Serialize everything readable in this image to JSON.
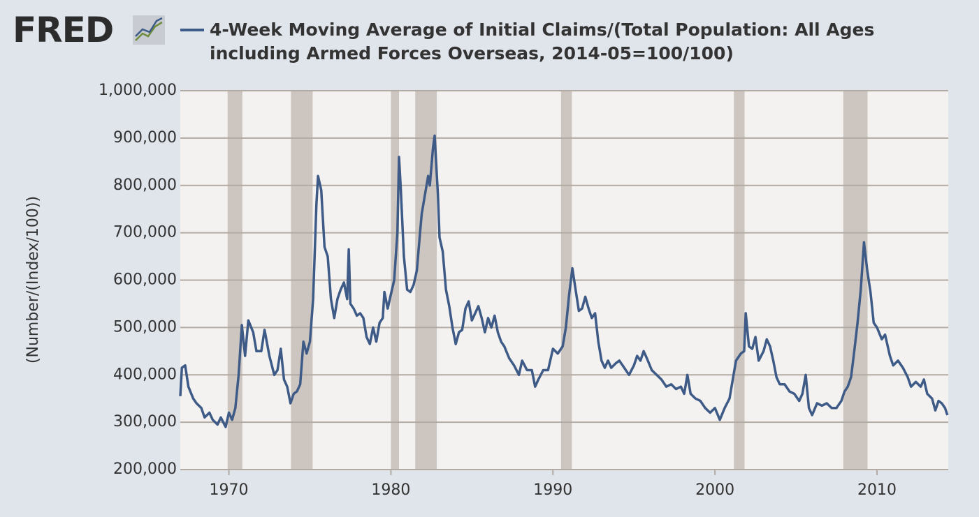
{
  "chart_data": {
    "type": "line",
    "logo": "FRED",
    "title": "4-Week Moving Average of Initial Claims/(Total Population: All Ages including Armed Forces Overseas, 2014-05=100/100)",
    "y_label": "(Number/(Index/100))",
    "xlim": [
      1967,
      2014.4
    ],
    "xticks": [
      1970,
      1980,
      1990,
      2000,
      2010
    ],
    "ylim": [
      200000,
      1000000
    ],
    "yticks": [
      {
        "value": 200000,
        "label": "200,000"
      },
      {
        "value": 300000,
        "label": "300,000"
      },
      {
        "value": 400000,
        "label": "400,000"
      },
      {
        "value": 500000,
        "label": "500,000"
      },
      {
        "value": 600000,
        "label": "600,000"
      },
      {
        "value": 700000,
        "label": "700,000"
      },
      {
        "value": 800000,
        "label": "800,000"
      },
      {
        "value": 900000,
        "label": "900,000"
      },
      {
        "value": 1000000,
        "label": "1,000,000"
      }
    ],
    "grid": true,
    "recession_color": "#cdc6c0",
    "recessions": [
      [
        1969.92,
        1970.83
      ],
      [
        1973.83,
        1975.17
      ],
      [
        1980.0,
        1980.5
      ],
      [
        1981.5,
        1982.83
      ],
      [
        1990.5,
        1991.17
      ],
      [
        2001.17,
        2001.83
      ],
      [
        2007.92,
        2009.42
      ]
    ],
    "series": [
      {
        "name": "4-Week Moving Average of Initial Claims/(Total Population: All Ages including Armed Forces Overseas, 2014-05=100/100)",
        "color": "#3e5a86",
        "x": [
          1967.0,
          1967.1,
          1967.3,
          1967.5,
          1967.8,
          1968.0,
          1968.3,
          1968.5,
          1968.8,
          1969.0,
          1969.3,
          1969.5,
          1969.8,
          1970.0,
          1970.2,
          1970.4,
          1970.6,
          1970.8,
          1971.0,
          1971.2,
          1971.5,
          1971.7,
          1972.0,
          1972.2,
          1972.5,
          1972.8,
          1973.0,
          1973.2,
          1973.4,
          1973.6,
          1973.8,
          1974.0,
          1974.2,
          1974.4,
          1974.6,
          1974.8,
          1975.0,
          1975.2,
          1975.4,
          1975.5,
          1975.7,
          1975.9,
          1976.1,
          1976.3,
          1976.5,
          1976.7,
          1976.9,
          1977.1,
          1977.3,
          1977.4,
          1977.5,
          1977.7,
          1977.9,
          1978.1,
          1978.3,
          1978.5,
          1978.7,
          1978.9,
          1979.1,
          1979.3,
          1979.5,
          1979.6,
          1979.8,
          1980.0,
          1980.2,
          1980.4,
          1980.5,
          1980.6,
          1980.8,
          1981.0,
          1981.2,
          1981.4,
          1981.6,
          1981.8,
          1981.9,
          1982.1,
          1982.3,
          1982.4,
          1982.6,
          1982.7,
          1982.9,
          1983.0,
          1983.2,
          1983.4,
          1983.6,
          1983.8,
          1984.0,
          1984.2,
          1984.4,
          1984.6,
          1984.8,
          1985.0,
          1985.2,
          1985.4,
          1985.6,
          1985.8,
          1986.0,
          1986.2,
          1986.4,
          1986.6,
          1986.8,
          1987.0,
          1987.3,
          1987.6,
          1987.9,
          1988.1,
          1988.4,
          1988.7,
          1988.9,
          1989.1,
          1989.4,
          1989.7,
          1990.0,
          1990.3,
          1990.6,
          1990.8,
          1991.0,
          1991.2,
          1991.4,
          1991.6,
          1991.8,
          1992.0,
          1992.2,
          1992.4,
          1992.6,
          1992.8,
          1993.0,
          1993.2,
          1993.4,
          1993.6,
          1993.9,
          1994.1,
          1994.4,
          1994.7,
          1995.0,
          1995.2,
          1995.4,
          1995.6,
          1995.8,
          1996.1,
          1996.4,
          1996.7,
          1997.0,
          1997.3,
          1997.6,
          1997.9,
          1998.1,
          1998.3,
          1998.5,
          1998.8,
          1999.1,
          1999.4,
          1999.7,
          2000.0,
          2000.3,
          2000.6,
          2000.9,
          2001.1,
          2001.3,
          2001.6,
          2001.8,
          2001.9,
          2002.1,
          2002.3,
          2002.5,
          2002.7,
          2003.0,
          2003.2,
          2003.4,
          2003.6,
          2003.8,
          2004.0,
          2004.3,
          2004.6,
          2004.9,
          2005.2,
          2005.4,
          2005.6,
          2005.8,
          2006.0,
          2006.3,
          2006.6,
          2006.9,
          2007.2,
          2007.5,
          2007.8,
          2008.0,
          2008.2,
          2008.4,
          2008.6,
          2008.8,
          2009.0,
          2009.2,
          2009.4,
          2009.6,
          2009.8,
          2010.0,
          2010.3,
          2010.5,
          2010.8,
          2011.0,
          2011.3,
          2011.6,
          2011.9,
          2012.1,
          2012.4,
          2012.7,
          2012.9,
          2013.1,
          2013.4,
          2013.6,
          2013.8,
          2014.0,
          2014.2,
          2014.35
        ],
        "values": [
          355000,
          415000,
          420000,
          375000,
          350000,
          340000,
          330000,
          310000,
          320000,
          305000,
          295000,
          310000,
          290000,
          320000,
          305000,
          330000,
          400000,
          505000,
          440000,
          515000,
          490000,
          450000,
          450000,
          495000,
          440000,
          400000,
          410000,
          455000,
          390000,
          375000,
          340000,
          360000,
          365000,
          380000,
          470000,
          445000,
          470000,
          560000,
          760000,
          820000,
          790000,
          670000,
          650000,
          560000,
          520000,
          560000,
          580000,
          595000,
          560000,
          665000,
          550000,
          540000,
          525000,
          530000,
          520000,
          480000,
          465000,
          500000,
          470000,
          510000,
          520000,
          575000,
          540000,
          570000,
          600000,
          700000,
          860000,
          800000,
          650000,
          580000,
          575000,
          590000,
          620000,
          700000,
          740000,
          780000,
          820000,
          800000,
          880000,
          905000,
          780000,
          690000,
          660000,
          580000,
          545000,
          500000,
          465000,
          490000,
          495000,
          540000,
          555000,
          515000,
          530000,
          545000,
          520000,
          490000,
          520000,
          500000,
          525000,
          490000,
          470000,
          460000,
          435000,
          420000,
          400000,
          430000,
          410000,
          410000,
          375000,
          390000,
          410000,
          410000,
          455000,
          445000,
          460000,
          500000,
          570000,
          625000,
          580000,
          535000,
          540000,
          565000,
          540000,
          520000,
          530000,
          470000,
          430000,
          415000,
          430000,
          415000,
          425000,
          430000,
          415000,
          400000,
          420000,
          440000,
          430000,
          450000,
          435000,
          410000,
          400000,
          390000,
          375000,
          380000,
          370000,
          375000,
          360000,
          400000,
          360000,
          350000,
          345000,
          330000,
          320000,
          330000,
          305000,
          330000,
          350000,
          390000,
          430000,
          445000,
          450000,
          530000,
          460000,
          455000,
          480000,
          430000,
          450000,
          475000,
          460000,
          430000,
          395000,
          380000,
          380000,
          365000,
          360000,
          345000,
          360000,
          400000,
          330000,
          315000,
          340000,
          335000,
          340000,
          330000,
          330000,
          345000,
          365000,
          375000,
          395000,
          450000,
          510000,
          580000,
          680000,
          620000,
          575000,
          510000,
          500000,
          475000,
          485000,
          440000,
          420000,
          430000,
          415000,
          395000,
          375000,
          385000,
          375000,
          390000,
          360000,
          350000,
          325000,
          345000,
          340000,
          330000,
          315000
        ]
      }
    ]
  }
}
